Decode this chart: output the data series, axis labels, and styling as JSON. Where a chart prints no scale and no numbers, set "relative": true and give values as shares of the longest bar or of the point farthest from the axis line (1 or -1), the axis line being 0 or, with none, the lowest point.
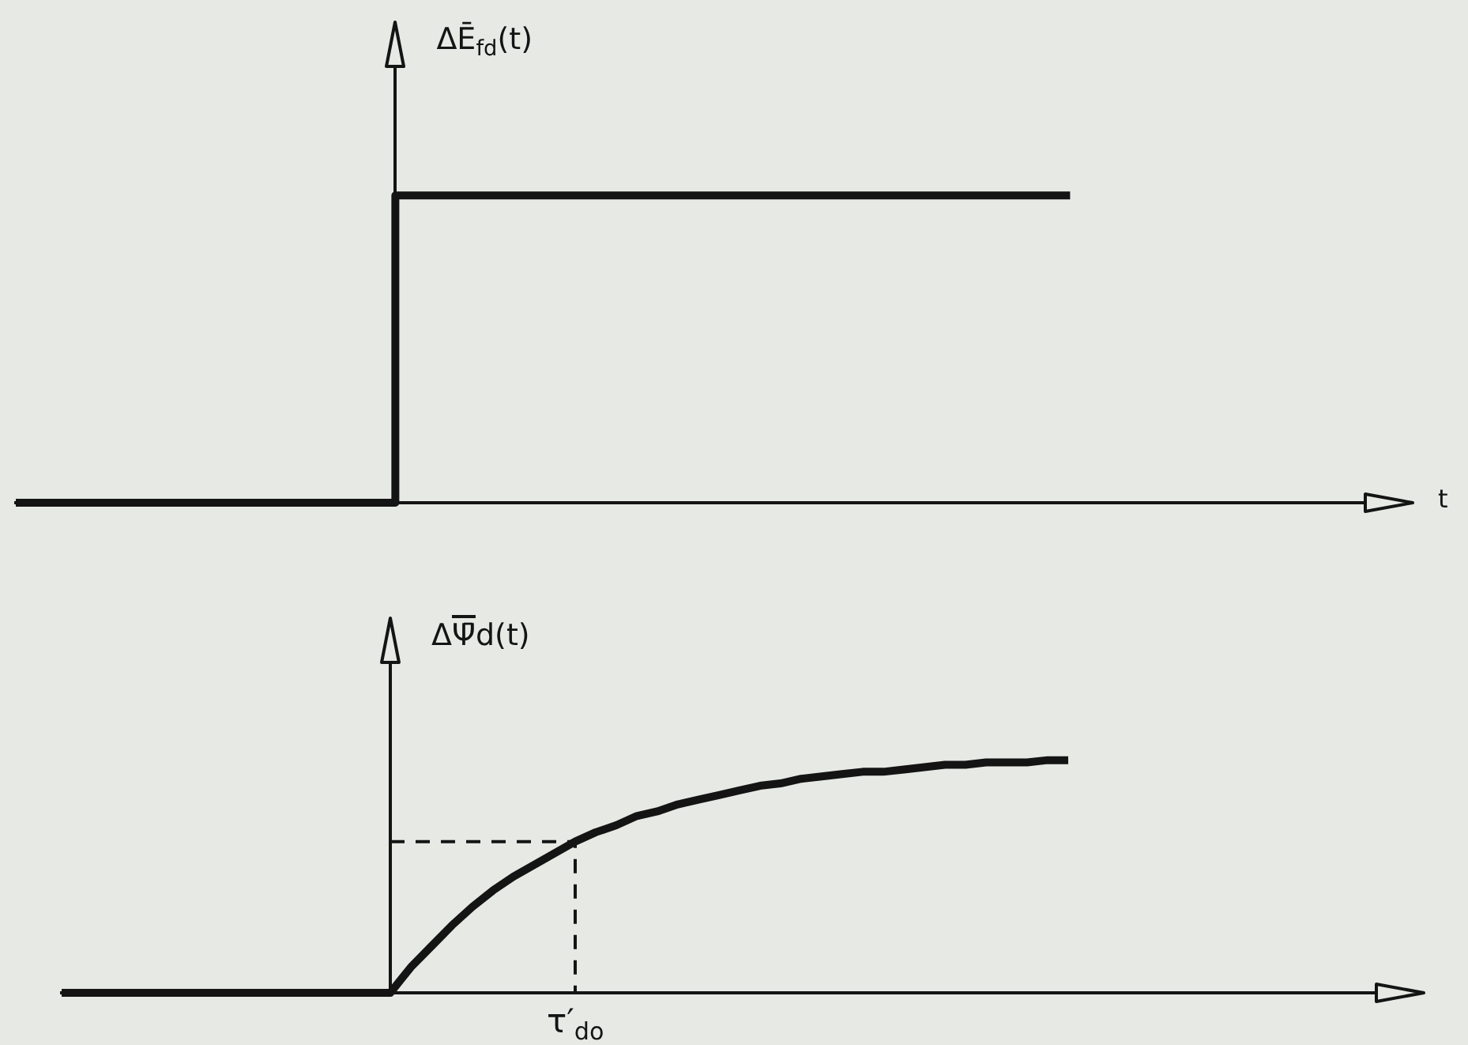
{
  "chart_data": [
    {
      "type": "step",
      "ylabel": "ΔĒ$_{fd}$(t)",
      "xlabel": "t",
      "relative": true,
      "categories": [
        null,
        null,
        null,
        null,
        null,
        null,
        null,
        null,
        null,
        null,
        null,
        null,
        null,
        null,
        null,
        null,
        null,
        null,
        null,
        null,
        null,
        null,
        null,
        null,
        null,
        null,
        null,
        null,
        null,
        null,
        null,
        null,
        null
      ],
      "series": [
        {
          "color": "#141414",
          "values": [
            0,
            0,
            0,
            0,
            0,
            0,
            0,
            0,
            0,
            0,
            1,
            1,
            1,
            1,
            1,
            1,
            1,
            1,
            1,
            1,
            1,
            1,
            1,
            1,
            1,
            1,
            null,
            null,
            null,
            null,
            null,
            null,
            null
          ]
        }
      ]
    },
    {
      "type": "line",
      "ylabel": "ΔΨ̄d(t)",
      "relative": true,
      "categories": [
        null,
        null,
        null,
        null,
        null,
        null,
        null,
        null,
        null,
        null,
        null,
        null,
        null,
        null,
        null,
        null,
        null,
        null,
        null,
        null,
        null,
        null,
        null,
        null,
        null,
        null,
        null,
        null,
        null,
        null,
        null,
        null,
        null,
        null,
        null,
        null,
        null,
        null,
        null,
        null,
        null,
        null,
        null,
        null,
        null,
        null,
        null,
        null,
        null,
        null,
        null,
        null,
        null,
        null,
        null,
        null,
        null,
        null,
        null,
        null,
        null,
        null,
        null,
        null,
        null
      ],
      "series": [
        {
          "color": "#141414",
          "values": [
            0,
            0,
            0,
            0,
            0,
            0,
            0,
            0,
            0,
            0,
            0,
            0,
            0,
            0,
            0,
            0,
            0,
            0.11,
            0.2,
            0.29,
            0.37,
            0.44,
            0.5,
            0.55,
            0.6,
            0.65,
            0.69,
            0.72,
            0.76,
            0.78,
            0.81,
            0.83,
            0.85,
            0.87,
            0.89,
            0.9,
            0.92,
            0.93,
            0.94,
            0.95,
            0.95,
            0.96,
            0.97,
            0.98,
            0.98,
            0.99,
            0.99,
            0.99,
            1,
            1,
            null,
            null,
            null,
            null,
            null,
            null,
            null,
            null,
            null,
            null,
            null,
            null,
            null,
            null,
            null
          ]
        }
      ],
      "ref_lines": [
        {
          "axis": "y",
          "value": 0.65,
          "line_style": "dashed"
        }
      ],
      "annotations": [
        "τ′$_{do}$"
      ]
    }
  ]
}
